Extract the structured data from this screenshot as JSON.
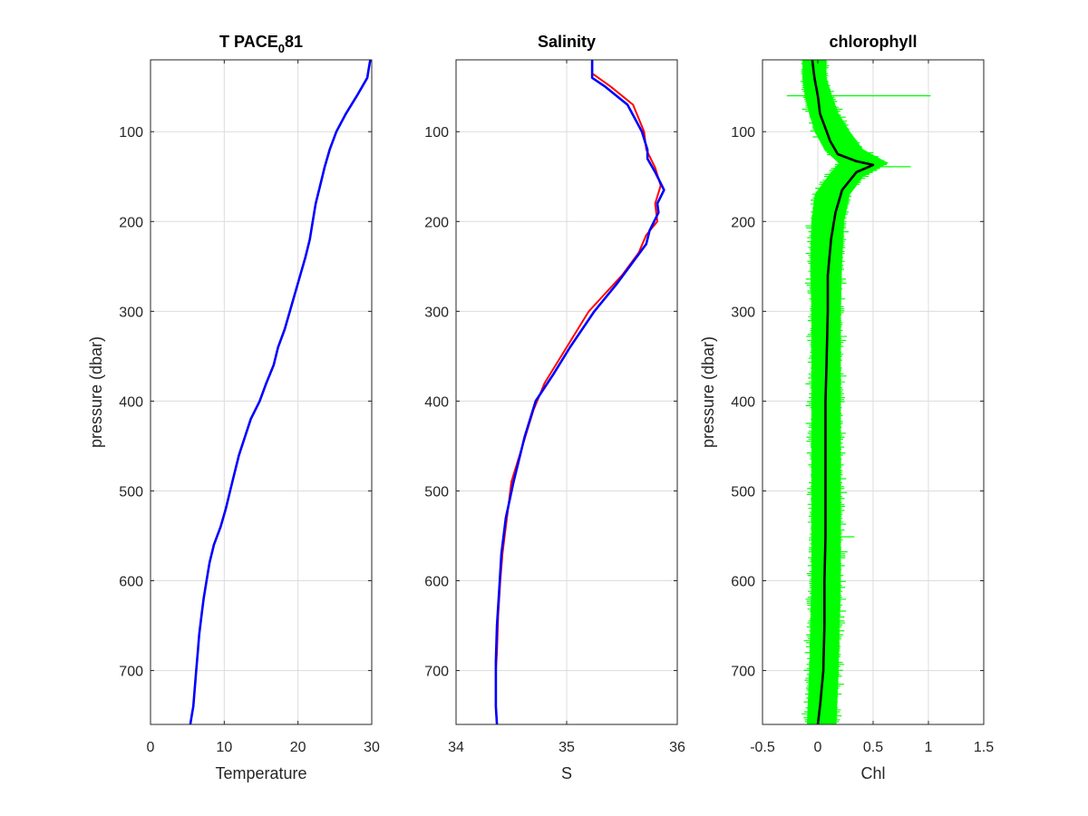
{
  "chart_data": [
    {
      "type": "line",
      "title": "T PACE",
      "title_subscript": "0",
      "title_suffix": "81",
      "xlabel": "Temperature",
      "ylabel": "pressure (dbar)",
      "xlim": [
        0,
        30
      ],
      "ylim": [
        20,
        760
      ],
      "y_reversed": true,
      "grid": true,
      "xticks": [
        0,
        10,
        20,
        30
      ],
      "xtick_labels": [
        "0",
        "10",
        "20",
        "30"
      ],
      "yticks": [
        100,
        200,
        300,
        400,
        500,
        600,
        700
      ],
      "ytick_labels": [
        "100",
        "200",
        "300",
        "400",
        "500",
        "600",
        "700"
      ],
      "series": [
        {
          "color": "#0000ff",
          "x": [
            29.8,
            29.6,
            29.4,
            28.0,
            26.5,
            25.2,
            24.3,
            23.6,
            23.0,
            22.4,
            22.0,
            21.6,
            21.0,
            20.3,
            19.6,
            18.9,
            18.2,
            17.3,
            16.7,
            15.7,
            14.8,
            13.6,
            12.8,
            12.0,
            11.4,
            10.8,
            10.2,
            9.5,
            8.6,
            8.0,
            7.6,
            7.2,
            6.9,
            6.6,
            6.4,
            6.2,
            6.0,
            5.8,
            5.6,
            5.4
          ],
          "y": [
            20,
            30,
            40,
            60,
            80,
            100,
            120,
            140,
            160,
            180,
            200,
            220,
            240,
            260,
            280,
            300,
            320,
            340,
            360,
            380,
            400,
            420,
            440,
            460,
            480,
            500,
            520,
            540,
            560,
            580,
            600,
            620,
            640,
            660,
            680,
            700,
            720,
            740,
            750,
            760
          ]
        }
      ]
    },
    {
      "type": "line",
      "title": "Salinity",
      "xlabel": "S",
      "ylabel": "",
      "xlim": [
        34,
        36
      ],
      "ylim": [
        20,
        760
      ],
      "y_reversed": true,
      "grid": true,
      "xticks": [
        34,
        35,
        36
      ],
      "xtick_labels": [
        "34",
        "35",
        "36"
      ],
      "yticks": [
        100,
        200,
        300,
        400,
        500,
        600,
        700
      ],
      "ytick_labels": [
        "100",
        "200",
        "300",
        "400",
        "500",
        "600",
        "700"
      ],
      "series": [
        {
          "color": "#ff0000",
          "x": [
            35.23,
            35.23,
            35.4,
            35.6,
            35.7,
            35.72,
            35.8,
            35.85,
            35.8,
            35.82,
            35.72,
            35.65,
            35.5,
            35.35,
            35.2,
            35.0,
            34.8,
            34.7,
            34.6,
            34.5,
            34.46,
            34.42,
            34.4,
            34.38,
            34.37,
            34.36,
            34.36,
            34.36,
            34.37
          ],
          "y": [
            20,
            35,
            50,
            70,
            100,
            120,
            140,
            160,
            180,
            200,
            215,
            235,
            260,
            280,
            300,
            340,
            380,
            410,
            450,
            490,
            530,
            570,
            600,
            640,
            680,
            700,
            720,
            740,
            760
          ]
        },
        {
          "color": "#0000ff",
          "x": [
            35.23,
            35.23,
            35.35,
            35.55,
            35.68,
            35.73,
            35.73,
            35.8,
            35.88,
            35.82,
            35.83,
            35.75,
            35.72,
            35.6,
            35.45,
            35.25,
            35.03,
            34.88,
            34.72,
            34.62,
            34.52,
            34.45,
            34.41,
            34.39,
            34.37,
            34.36,
            34.36,
            34.36,
            34.37
          ],
          "y": [
            20,
            40,
            50,
            70,
            100,
            120,
            130,
            145,
            165,
            180,
            190,
            210,
            225,
            245,
            270,
            300,
            340,
            370,
            400,
            440,
            490,
            530,
            570,
            610,
            650,
            690,
            720,
            740,
            760
          ]
        }
      ]
    },
    {
      "type": "line",
      "title": "chlorophyll",
      "xlabel": "Chl",
      "ylabel": "pressure (dbar)",
      "xlim": [
        -0.5,
        1.5
      ],
      "ylim": [
        20,
        760
      ],
      "y_reversed": true,
      "grid": true,
      "xticks": [
        -0.5,
        0,
        0.5,
        1,
        1.5
      ],
      "xtick_labels": [
        "-0.5",
        "0",
        "0.5",
        "1",
        "1.5"
      ],
      "yticks": [
        100,
        200,
        300,
        400,
        500,
        600,
        700
      ],
      "ytick_labels": [
        "100",
        "200",
        "300",
        "400",
        "500",
        "600",
        "700"
      ],
      "spread_band": {
        "color": "#00ff00",
        "y": [
          20,
          40,
          60,
          80,
          100,
          120,
          135,
          150,
          170,
          200,
          250,
          300,
          400,
          500,
          600,
          700,
          760
        ],
        "low": [
          -0.13,
          -0.13,
          -0.11,
          -0.07,
          -0.02,
          0.07,
          0.2,
          0.1,
          -0.02,
          -0.05,
          -0.06,
          -0.05,
          -0.05,
          -0.05,
          -0.05,
          -0.07,
          -0.09
        ],
        "high": [
          0.07,
          0.07,
          0.12,
          0.18,
          0.28,
          0.4,
          0.62,
          0.4,
          0.28,
          0.23,
          0.21,
          0.2,
          0.2,
          0.2,
          0.2,
          0.18,
          0.16
        ]
      },
      "spikes": [
        {
          "y": 60,
          "x0": -0.28,
          "x1": 1.02
        },
        {
          "y": 139,
          "x0": 0.4,
          "x1": 0.84
        },
        {
          "y": 551,
          "x0": 0.15,
          "x1": 0.33
        }
      ],
      "series": [
        {
          "color": "#000000",
          "x": [
            -0.05,
            -0.03,
            0.0,
            0.02,
            0.08,
            0.11,
            0.18,
            0.35,
            0.5,
            0.35,
            0.22,
            0.16,
            0.12,
            0.09,
            0.09,
            0.08,
            0.07,
            0.07,
            0.07,
            0.07,
            0.06,
            0.06,
            0.05,
            0.02,
            0.0
          ],
          "y": [
            20,
            40,
            60,
            80,
            100,
            110,
            125,
            133,
            137,
            145,
            165,
            190,
            220,
            260,
            300,
            350,
            400,
            450,
            500,
            550,
            600,
            650,
            700,
            740,
            760
          ]
        }
      ]
    }
  ]
}
